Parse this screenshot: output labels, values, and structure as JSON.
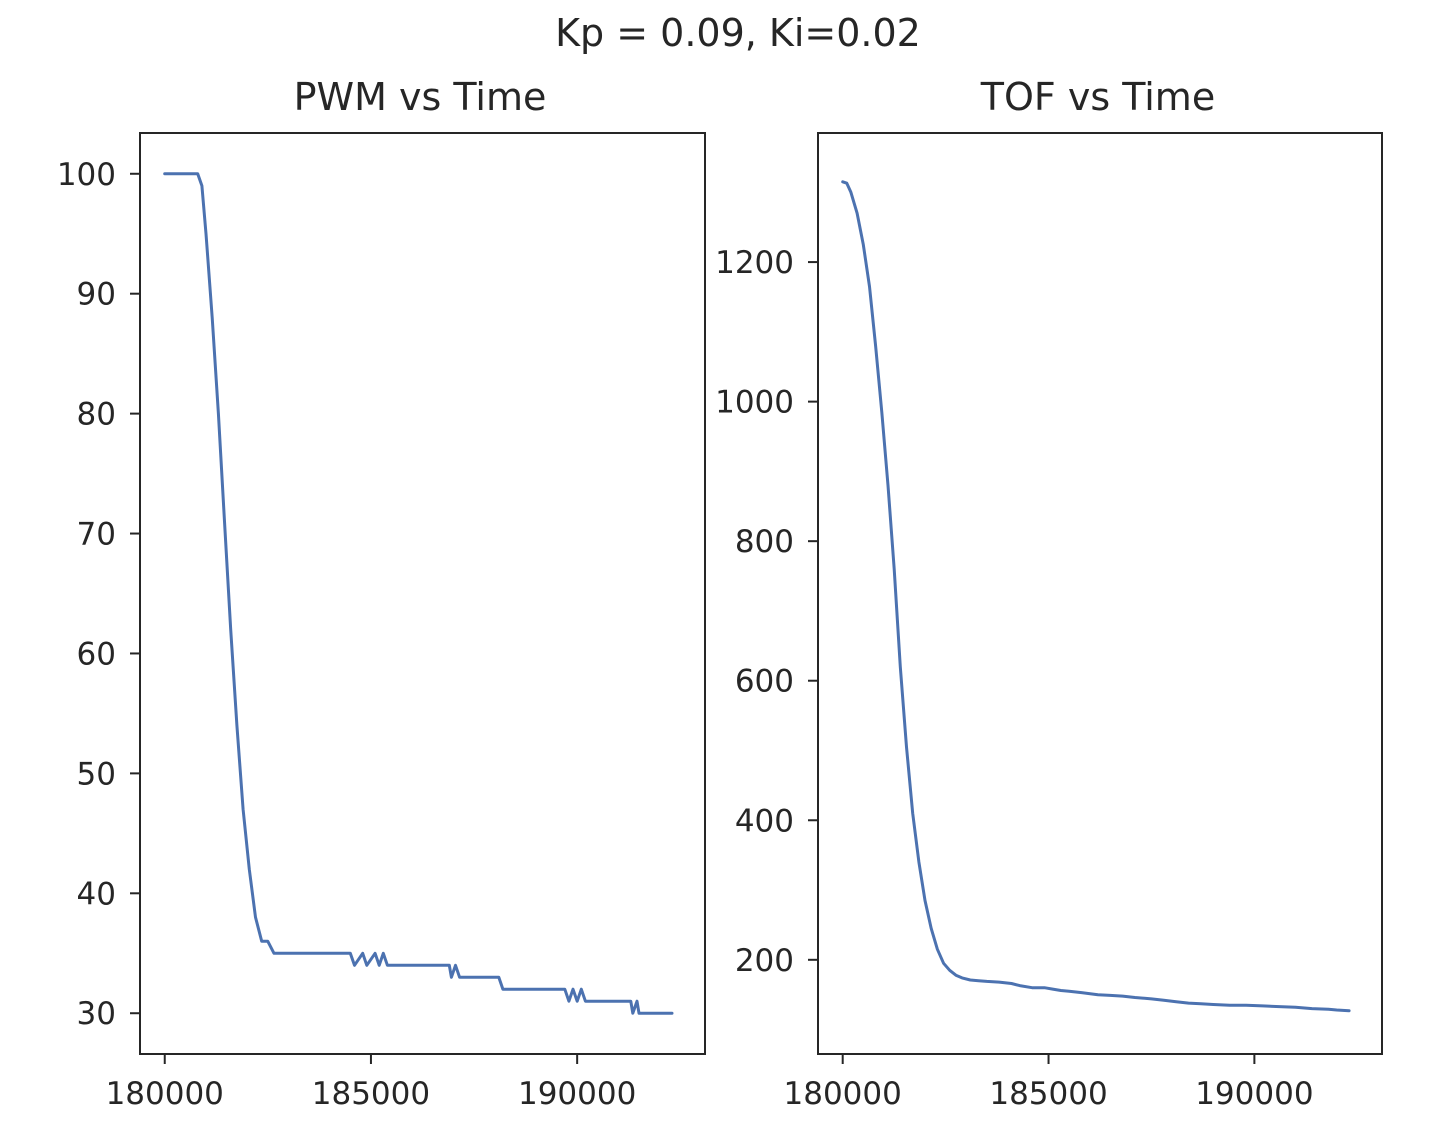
{
  "figure": {
    "suptitle": "Kp = 0.09, Ki=0.02",
    "line_color": "#4c72b0"
  },
  "chart_data": [
    {
      "type": "line",
      "title": "PWM vs Time",
      "xlabel": "",
      "ylabel": "",
      "xlim": [
        179400,
        193100
      ],
      "ylim": [
        26.6,
        103.4
      ],
      "xticks": [
        180000,
        185000,
        190000
      ],
      "yticks": [
        30,
        40,
        50,
        60,
        70,
        80,
        90,
        100
      ],
      "grid": false,
      "series": [
        {
          "x": [
            180000,
            180200,
            180500,
            180800,
            180900,
            181000,
            181150,
            181300,
            181450,
            181600,
            181750,
            181900,
            182050,
            182200,
            182350,
            182500,
            182650,
            182800,
            182950,
            183000,
            183500,
            184000,
            184500,
            184600,
            184800,
            184900,
            185100,
            185200,
            185300,
            185400,
            185500,
            185600,
            186000,
            186500,
            186900,
            186950,
            187050,
            187150,
            187200,
            187600,
            188100,
            188200,
            188600,
            189000,
            189500,
            189700,
            189800,
            189900,
            190000,
            190100,
            190200,
            190600,
            191000,
            191300,
            191350,
            191450,
            191500,
            192000,
            192300
          ],
          "y": [
            100,
            100,
            100,
            100,
            99,
            95,
            88,
            80,
            71,
            62,
            54,
            47,
            42,
            38,
            36,
            36,
            35,
            35,
            35,
            35,
            35,
            35,
            35,
            34,
            35,
            34,
            35,
            34,
            35,
            34,
            34,
            34,
            34,
            34,
            34,
            33,
            34,
            33,
            33,
            33,
            33,
            32,
            32,
            32,
            32,
            32,
            31,
            32,
            31,
            32,
            31,
            31,
            31,
            31,
            30,
            31,
            30,
            30,
            30
          ]
        }
      ]
    },
    {
      "type": "line",
      "title": "TOF vs Time",
      "xlabel": "",
      "ylabel": "",
      "xlim": [
        179400,
        193100
      ],
      "ylim": [
        65,
        1385
      ],
      "xticks": [
        180000,
        185000,
        190000
      ],
      "yticks": [
        200,
        400,
        600,
        800,
        1000,
        1200
      ],
      "grid": false,
      "series": [
        {
          "x": [
            180000,
            180100,
            180200,
            180350,
            180500,
            180650,
            180800,
            180950,
            181100,
            181250,
            181400,
            181550,
            181700,
            181850,
            182000,
            182150,
            182300,
            182450,
            182600,
            182750,
            182900,
            183100,
            183300,
            183500,
            183800,
            184100,
            184300,
            184600,
            184900,
            185100,
            185300,
            185500,
            185800,
            186200,
            186500,
            186800,
            187100,
            187500,
            187800,
            188100,
            188400,
            188700,
            189000,
            189400,
            189800,
            190200,
            190600,
            191000,
            191400,
            191800,
            192000,
            192300
          ],
          "y": [
            1315,
            1313,
            1300,
            1270,
            1225,
            1165,
            1080,
            985,
            880,
            760,
            620,
            505,
            410,
            340,
            285,
            245,
            215,
            195,
            185,
            178,
            174,
            171,
            170,
            169,
            168,
            166,
            163,
            160,
            160,
            158,
            156,
            155,
            153,
            150,
            149,
            148,
            146,
            144,
            142,
            140,
            138,
            137,
            136,
            135,
            135,
            134,
            133,
            132,
            130,
            129,
            128,
            127
          ]
        }
      ]
    }
  ]
}
